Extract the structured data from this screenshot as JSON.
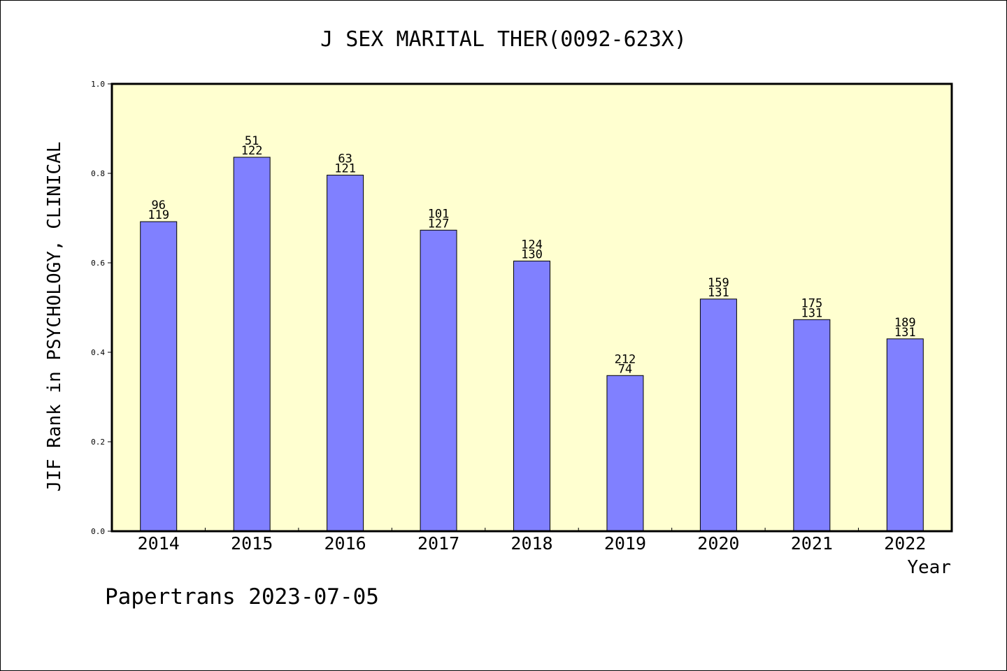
{
  "chart_data": {
    "type": "bar",
    "title": "J SEX MARITAL THER(0092-623X)",
    "xlabel": "Year",
    "ylabel": "JIF Rank in PSYCHOLOGY, CLINICAL",
    "ylim": [
      0,
      1.0
    ],
    "yticks": [
      "0.0",
      "0.2",
      "0.4",
      "0.6",
      "0.8",
      "1.0"
    ],
    "grid": false,
    "categories": [
      "2014",
      "2015",
      "2016",
      "2017",
      "2018",
      "2019",
      "2020",
      "2021",
      "2022"
    ],
    "values": [
      0.692,
      0.836,
      0.796,
      0.673,
      0.604,
      0.348,
      0.519,
      0.473,
      0.43
    ],
    "rank_labels": [
      "96",
      "51",
      "63",
      "101",
      "124",
      "212",
      "159",
      "175",
      "189"
    ],
    "total_labels": [
      "119",
      "122",
      "121",
      "127",
      "130",
      "74",
      "131",
      "131",
      "131"
    ],
    "bar_color": "#8080ff",
    "plot_background": "#ffffd0"
  },
  "footer": {
    "credit": "Papertrans 2023-07-05"
  }
}
